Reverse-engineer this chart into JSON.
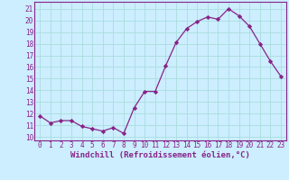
{
  "x": [
    0,
    1,
    2,
    3,
    4,
    5,
    6,
    7,
    8,
    9,
    10,
    11,
    12,
    13,
    14,
    15,
    16,
    17,
    18,
    19,
    20,
    21,
    22,
    23
  ],
  "y": [
    11.8,
    11.2,
    11.4,
    11.4,
    10.9,
    10.7,
    10.5,
    10.8,
    10.3,
    12.5,
    13.9,
    13.9,
    16.1,
    18.1,
    19.3,
    19.9,
    20.3,
    20.1,
    21.0,
    20.4,
    19.5,
    18.0,
    16.5,
    15.2
  ],
  "line_color": "#882288",
  "marker": "D",
  "marker_size": 2.2,
  "bg_color": "#cceeff",
  "grid_color": "#aadddd",
  "xlabel": "Windchill (Refroidissement éolien,°C)",
  "xlabel_fontsize": 6.5,
  "tick_fontsize": 5.5,
  "ylabel_ticks": [
    10,
    11,
    12,
    13,
    14,
    15,
    16,
    17,
    18,
    19,
    20,
    21
  ],
  "xtick_labels": [
    "0",
    "1",
    "2",
    "3",
    "4",
    "5",
    "6",
    "7",
    "8",
    "9",
    "10",
    "11",
    "12",
    "13",
    "14",
    "15",
    "16",
    "17",
    "18",
    "19",
    "20",
    "21",
    "22",
    "23"
  ],
  "ylim": [
    9.7,
    21.6
  ],
  "xlim": [
    -0.5,
    23.5
  ]
}
